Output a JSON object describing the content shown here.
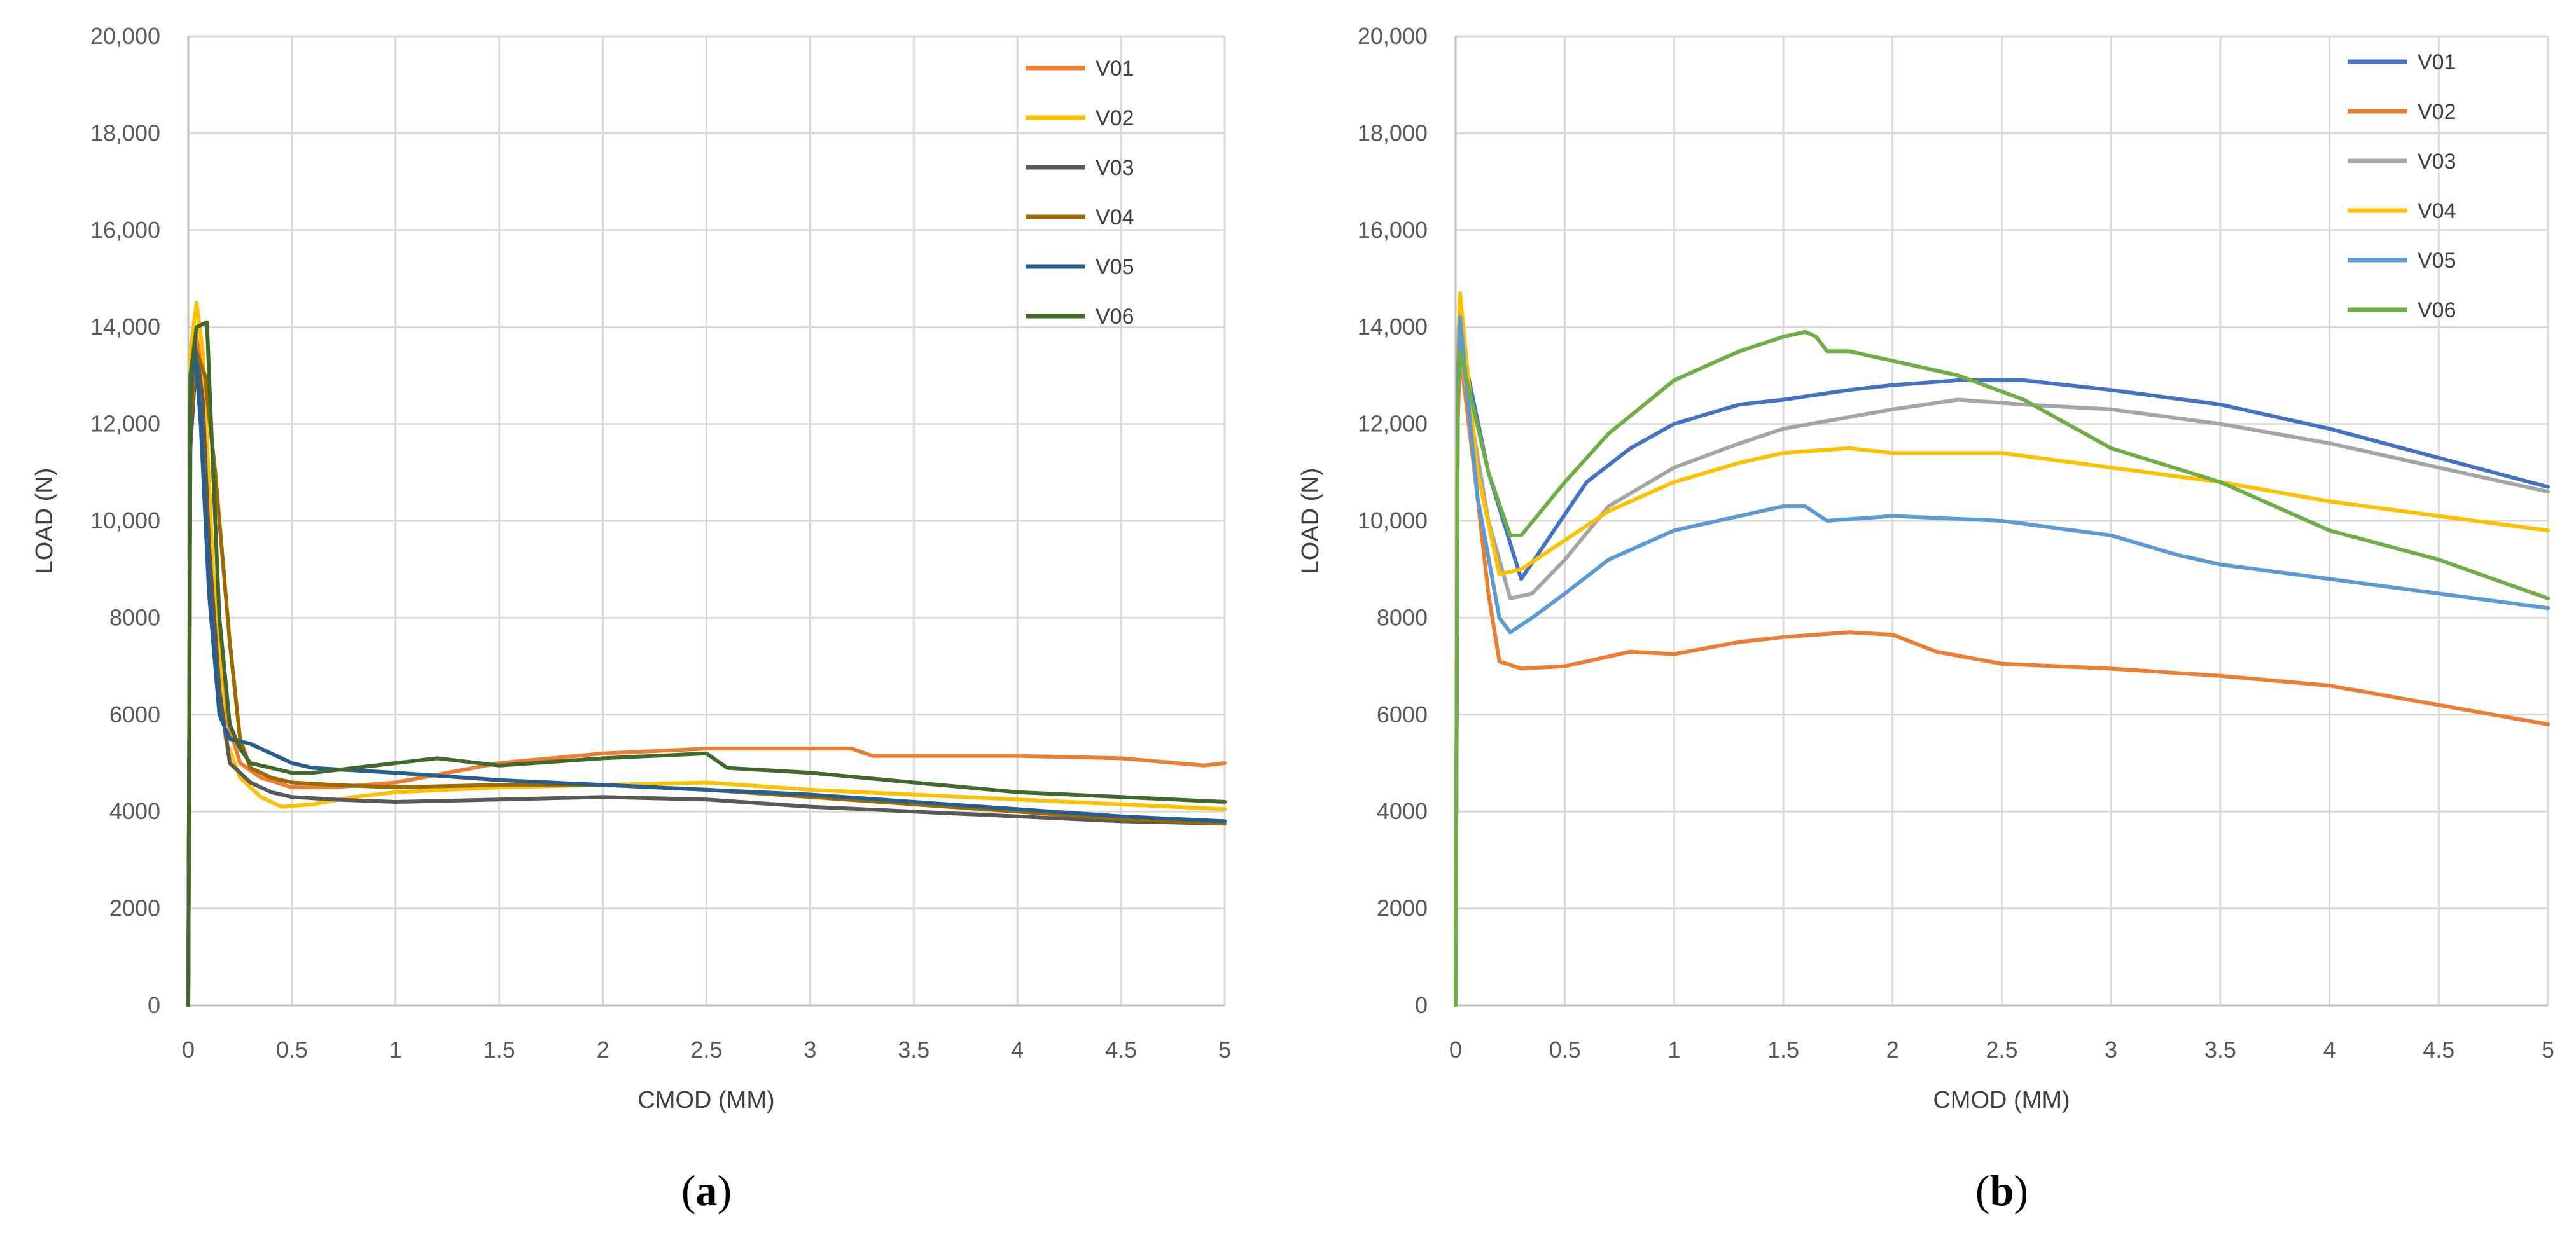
{
  "chart_data": [
    {
      "type": "line",
      "panel_label": "a",
      "title": "",
      "xlabel": "CMOD (MM)",
      "ylabel": "LOAD (N)",
      "xlim": [
        0,
        5
      ],
      "ylim": [
        0,
        20000
      ],
      "x_ticks": [
        0,
        0.5,
        1,
        1.5,
        2,
        2.5,
        3,
        3.5,
        4,
        4.5,
        5
      ],
      "x_tick_labels": [
        "0",
        "0.5",
        "1",
        "1.5",
        "2",
        "2.5",
        "3",
        "3.5",
        "4",
        "4.5",
        "5"
      ],
      "y_ticks": [
        0,
        2000,
        4000,
        6000,
        8000,
        10000,
        12000,
        14000,
        16000,
        18000,
        20000
      ],
      "y_tick_labels": [
        "0",
        "2000",
        "4000",
        "6000",
        "8000",
        "10,000",
        "12,000",
        "14,000",
        "16,000",
        "18,000",
        "20,000"
      ],
      "grid": true,
      "legend_position": "top-right",
      "series": [
        {
          "name": "V01",
          "color": "#ED7D31",
          "x": [
            0,
            0.01,
            0.04,
            0.07,
            0.12,
            0.18,
            0.25,
            0.35,
            0.5,
            0.7,
            1.0,
            1.5,
            2.0,
            2.5,
            3.0,
            3.2,
            3.3,
            3.5,
            4.0,
            4.5,
            4.9,
            5.0
          ],
          "y": [
            0,
            12500,
            13800,
            13000,
            9000,
            6000,
            5000,
            4700,
            4500,
            4500,
            4600,
            5000,
            5200,
            5300,
            5300,
            5300,
            5150,
            5150,
            5150,
            5100,
            4950,
            5000
          ]
        },
        {
          "name": "V02",
          "color": "#FFC000",
          "x": [
            0,
            0.01,
            0.04,
            0.07,
            0.12,
            0.18,
            0.25,
            0.35,
            0.45,
            0.6,
            0.8,
            1.0,
            1.5,
            2.0,
            2.5,
            3.0,
            3.5,
            4.0,
            4.5,
            5.0
          ],
          "y": [
            0,
            13500,
            14500,
            13500,
            9000,
            5500,
            4700,
            4300,
            4100,
            4150,
            4300,
            4400,
            4500,
            4550,
            4600,
            4450,
            4350,
            4250,
            4150,
            4050
          ]
        },
        {
          "name": "V03",
          "color": "#595959",
          "x": [
            0,
            0.01,
            0.04,
            0.07,
            0.1,
            0.15,
            0.2,
            0.3,
            0.4,
            0.5,
            0.7,
            1.0,
            1.5,
            2.0,
            2.5,
            3.0,
            3.5,
            4.0,
            4.5,
            5.0
          ],
          "y": [
            0,
            11500,
            13500,
            12500,
            9500,
            6500,
            5000,
            4600,
            4400,
            4300,
            4250,
            4200,
            4250,
            4300,
            4250,
            4100,
            4000,
            3900,
            3800,
            3750
          ]
        },
        {
          "name": "V04",
          "color": "#9C6A00",
          "x": [
            0,
            0.01,
            0.04,
            0.08,
            0.13,
            0.2,
            0.25,
            0.3,
            0.4,
            0.5,
            0.7,
            1.0,
            1.5,
            2.0,
            2.5,
            3.0,
            3.5,
            4.0,
            4.5,
            5.0
          ],
          "y": [
            0,
            12000,
            13500,
            13000,
            11000,
            7500,
            5500,
            4900,
            4700,
            4600,
            4550,
            4500,
            4550,
            4550,
            4450,
            4300,
            4150,
            4000,
            3850,
            3750
          ]
        },
        {
          "name": "V05",
          "color": "#255E91",
          "x": [
            0,
            0.01,
            0.03,
            0.06,
            0.1,
            0.15,
            0.2,
            0.3,
            0.4,
            0.5,
            0.6,
            0.8,
            1.0,
            1.5,
            2.0,
            2.5,
            3.0,
            3.5,
            4.0,
            4.5,
            5.0
          ],
          "y": [
            0,
            12500,
            13700,
            12000,
            8500,
            6000,
            5500,
            5400,
            5200,
            5000,
            4900,
            4850,
            4800,
            4650,
            4550,
            4450,
            4350,
            4200,
            4050,
            3900,
            3800
          ]
        },
        {
          "name": "V06",
          "color": "#43682B",
          "x": [
            0,
            0.01,
            0.04,
            0.09,
            0.12,
            0.15,
            0.2,
            0.25,
            0.3,
            0.4,
            0.5,
            0.6,
            0.8,
            1.0,
            1.2,
            1.5,
            2.0,
            2.5,
            2.6,
            3.0,
            3.5,
            4.0,
            4.5,
            5.0
          ],
          "y": [
            0,
            13000,
            14000,
            14100,
            11000,
            8000,
            5800,
            5300,
            5000,
            4900,
            4800,
            4800,
            4900,
            5000,
            5100,
            4950,
            5100,
            5200,
            4900,
            4800,
            4600,
            4400,
            4300,
            4200
          ]
        }
      ]
    },
    {
      "type": "line",
      "panel_label": "b",
      "title": "",
      "xlabel": "CMOD (MM)",
      "ylabel": "LOAD (N)",
      "xlim": [
        0,
        5
      ],
      "ylim": [
        0,
        20000
      ],
      "x_ticks": [
        0,
        0.5,
        1,
        1.5,
        2,
        2.5,
        3,
        3.5,
        4,
        4.5,
        5
      ],
      "x_tick_labels": [
        "0",
        "0.5",
        "1",
        "1.5",
        "2",
        "2.5",
        "3",
        "3.5",
        "4",
        "4.5",
        "5"
      ],
      "y_ticks": [
        0,
        2000,
        4000,
        6000,
        8000,
        10000,
        12000,
        14000,
        16000,
        18000,
        20000
      ],
      "y_tick_labels": [
        "0",
        "2000",
        "4000",
        "6000",
        "8000",
        "10,000",
        "12,000",
        "14,000",
        "16,000",
        "18,000",
        "20,000"
      ],
      "grid": true,
      "legend_position": "top-right",
      "series": [
        {
          "name": "V01",
          "color": "#4472C4",
          "x": [
            0,
            0.01,
            0.02,
            0.15,
            0.3,
            0.45,
            0.6,
            0.8,
            1.0,
            1.3,
            1.5,
            1.8,
            2.0,
            2.3,
            2.6,
            3.0,
            3.5,
            4.0,
            4.5,
            5.0
          ],
          "y": [
            0,
            12500,
            13800,
            11000,
            8800,
            9800,
            10800,
            11500,
            12000,
            12400,
            12500,
            12700,
            12800,
            12900,
            12900,
            12700,
            12400,
            11900,
            11300,
            10700
          ]
        },
        {
          "name": "V02",
          "color": "#ED7D31",
          "x": [
            0,
            0.01,
            0.02,
            0.1,
            0.15,
            0.2,
            0.3,
            0.5,
            0.7,
            0.8,
            1.0,
            1.3,
            1.5,
            1.8,
            2.0,
            2.2,
            2.5,
            3.0,
            3.5,
            4.0,
            4.5,
            5.0
          ],
          "y": [
            0,
            12000,
            13500,
            10500,
            8500,
            7100,
            6950,
            7000,
            7200,
            7300,
            7250,
            7500,
            7600,
            7700,
            7650,
            7300,
            7050,
            6950,
            6800,
            6600,
            6200,
            5800
          ]
        },
        {
          "name": "V03",
          "color": "#A5A5A5",
          "x": [
            0,
            0.01,
            0.02,
            0.15,
            0.25,
            0.35,
            0.5,
            0.7,
            1.0,
            1.3,
            1.5,
            2.0,
            2.3,
            2.6,
            3.0,
            3.5,
            4.0,
            4.5,
            5.0
          ],
          "y": [
            0,
            12500,
            13500,
            10000,
            8400,
            8500,
            9200,
            10300,
            11100,
            11600,
            11900,
            12300,
            12500,
            12400,
            12300,
            12000,
            11600,
            11100,
            10600
          ]
        },
        {
          "name": "V04",
          "color": "#FFC000",
          "x": [
            0,
            0.01,
            0.02,
            0.1,
            0.2,
            0.3,
            0.5,
            0.7,
            1.0,
            1.3,
            1.5,
            1.8,
            2.0,
            2.5,
            3.0,
            3.5,
            4.0,
            4.5,
            5.0
          ],
          "y": [
            0,
            13500,
            14700,
            11000,
            8900,
            9000,
            9600,
            10200,
            10800,
            11200,
            11400,
            11500,
            11400,
            11400,
            11100,
            10800,
            10400,
            10100,
            9800
          ]
        },
        {
          "name": "V05",
          "color": "#5B9BD5",
          "x": [
            0,
            0.01,
            0.02,
            0.1,
            0.2,
            0.25,
            0.35,
            0.5,
            0.7,
            1.0,
            1.3,
            1.5,
            1.6,
            1.7,
            2.0,
            2.5,
            3.0,
            3.3,
            3.5,
            4.0,
            4.5,
            5.0
          ],
          "y": [
            0,
            13000,
            14200,
            10500,
            8000,
            7700,
            8000,
            8500,
            9200,
            9800,
            10100,
            10300,
            10300,
            10000,
            10100,
            10000,
            9700,
            9300,
            9100,
            8800,
            8500,
            8200
          ]
        },
        {
          "name": "V06",
          "color": "#70AD47",
          "x": [
            0,
            0.01,
            0.02,
            0.15,
            0.25,
            0.3,
            0.5,
            0.7,
            1.0,
            1.3,
            1.5,
            1.6,
            1.65,
            1.7,
            1.8,
            2.0,
            2.3,
            2.6,
            3.0,
            3.5,
            4.0,
            4.5,
            5.0
          ],
          "y": [
            0,
            12500,
            13500,
            11000,
            9700,
            9700,
            10800,
            11800,
            12900,
            13500,
            13800,
            13900,
            13800,
            13500,
            13500,
            13300,
            13000,
            12500,
            11500,
            10800,
            9800,
            9200,
            8400
          ]
        }
      ]
    }
  ]
}
